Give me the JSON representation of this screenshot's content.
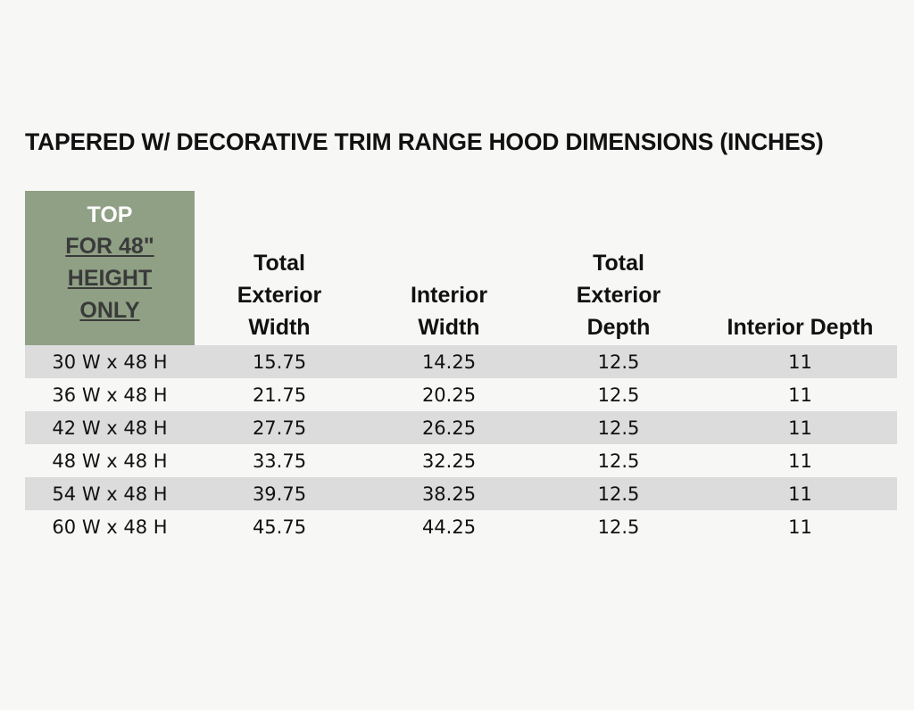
{
  "title": "TAPERED W/ DECORATIVE TRIM RANGE HOOD DIMENSIONS (INCHES)",
  "table": {
    "header": [
      {
        "title": "TOP",
        "lines": [
          "FOR 48\"",
          "HEIGHT",
          "ONLY"
        ]
      },
      [
        "Total",
        "Exterior",
        "Width"
      ],
      [
        "Interior",
        "Width"
      ],
      [
        "Total",
        "Exterior",
        "Depth"
      ],
      [
        "Interior Depth"
      ]
    ],
    "rows": [
      [
        "30 W x 48 H",
        "15.75",
        "14.25",
        "12.5",
        "11"
      ],
      [
        "36 W x 48 H",
        "21.75",
        "20.25",
        "12.5",
        "11"
      ],
      [
        "42 W x 48 H",
        "27.75",
        "26.25",
        "12.5",
        "11"
      ],
      [
        "48 W x 48 H",
        "33.75",
        "32.25",
        "12.5",
        "11"
      ],
      [
        "54 W x 48 H",
        "39.75",
        "38.25",
        "12.5",
        "11"
      ],
      [
        "60 W x 48 H",
        "45.75",
        "44.25",
        "12.5",
        "11"
      ]
    ]
  }
}
